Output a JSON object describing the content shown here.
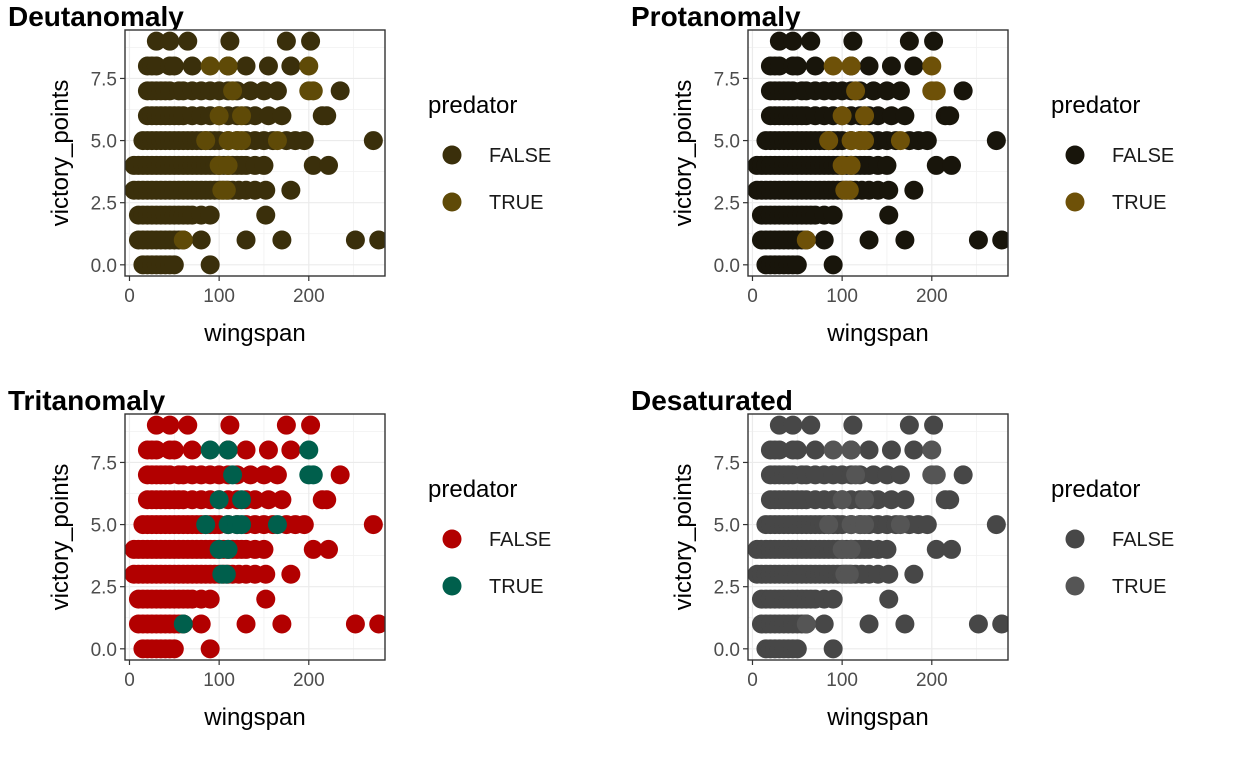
{
  "chart_data": [
    {
      "type": "scatter",
      "title": "Deutanomaly",
      "xlabel": "wingspan",
      "ylabel": "victory_points",
      "xlim": [
        -5,
        285
      ],
      "ylim": [
        -0.45,
        9.45
      ],
      "x_ticks": [
        0,
        100,
        200
      ],
      "x_tick_labels": [
        "0",
        "100",
        "200"
      ],
      "y_ticks": [
        0,
        2.5,
        5,
        7.5
      ],
      "y_tick_labels": [
        "0.0",
        "2.5",
        "5.0",
        "7.5"
      ],
      "grid": true,
      "legend": {
        "title": "predator",
        "position": "right",
        "entries": [
          "FALSE",
          "TRUE"
        ]
      },
      "series": [
        {
          "name": "FALSE",
          "color": "#3a2f0b"
        },
        {
          "name": "TRUE",
          "color": "#5f4a07"
        }
      ]
    },
    {
      "type": "scatter",
      "title": "Protanomaly",
      "xlabel": "wingspan",
      "ylabel": "victory_points",
      "xlim": [
        -5,
        285
      ],
      "ylim": [
        -0.45,
        9.45
      ],
      "x_ticks": [
        0,
        100,
        200
      ],
      "x_tick_labels": [
        "0",
        "100",
        "200"
      ],
      "y_ticks": [
        0,
        2.5,
        5,
        7.5
      ],
      "y_tick_labels": [
        "0.0",
        "2.5",
        "5.0",
        "7.5"
      ],
      "grid": true,
      "legend": {
        "title": "predator",
        "position": "right",
        "entries": [
          "FALSE",
          "TRUE"
        ]
      },
      "series": [
        {
          "name": "FALSE",
          "color": "#18150b"
        },
        {
          "name": "TRUE",
          "color": "#6e5108"
        }
      ]
    },
    {
      "type": "scatter",
      "title": "Tritanomaly",
      "xlabel": "wingspan",
      "ylabel": "victory_points",
      "xlim": [
        -5,
        285
      ],
      "ylim": [
        -0.45,
        9.45
      ],
      "x_ticks": [
        0,
        100,
        200
      ],
      "x_tick_labels": [
        "0",
        "100",
        "200"
      ],
      "y_ticks": [
        0,
        2.5,
        5,
        7.5
      ],
      "y_tick_labels": [
        "0.0",
        "2.5",
        "5.0",
        "7.5"
      ],
      "grid": true,
      "legend": {
        "title": "predator",
        "position": "right",
        "entries": [
          "FALSE",
          "TRUE"
        ]
      },
      "series": [
        {
          "name": "FALSE",
          "color": "#b20000"
        },
        {
          "name": "TRUE",
          "color": "#005f4c"
        }
      ]
    },
    {
      "type": "scatter",
      "title": "Desaturated",
      "xlabel": "wingspan",
      "ylabel": "victory_points",
      "xlim": [
        -5,
        285
      ],
      "ylim": [
        -0.45,
        9.45
      ],
      "x_ticks": [
        0,
        100,
        200
      ],
      "x_tick_labels": [
        "0",
        "100",
        "200"
      ],
      "y_ticks": [
        0,
        2.5,
        5,
        7.5
      ],
      "y_tick_labels": [
        "0.0",
        "2.5",
        "5.0",
        "7.5"
      ],
      "grid": true,
      "legend": {
        "title": "predator",
        "position": "right",
        "entries": [
          "FALSE",
          "TRUE"
        ]
      },
      "series": [
        {
          "name": "FALSE",
          "color": "#474747"
        },
        {
          "name": "TRUE",
          "color": "#555555"
        }
      ]
    }
  ],
  "points": {
    "FALSE": [
      [
        15,
        0
      ],
      [
        20,
        0
      ],
      [
        25,
        0
      ],
      [
        30,
        0
      ],
      [
        35,
        0
      ],
      [
        40,
        0
      ],
      [
        45,
        0
      ],
      [
        50,
        0
      ],
      [
        90,
        0
      ],
      [
        10,
        1
      ],
      [
        15,
        1
      ],
      [
        20,
        1
      ],
      [
        25,
        1
      ],
      [
        30,
        1
      ],
      [
        35,
        1
      ],
      [
        40,
        1
      ],
      [
        45,
        1
      ],
      [
        50,
        1
      ],
      [
        55,
        1
      ],
      [
        60,
        1
      ],
      [
        80,
        1
      ],
      [
        130,
        1
      ],
      [
        170,
        1
      ],
      [
        252,
        1
      ],
      [
        278,
        1
      ],
      [
        10,
        2
      ],
      [
        15,
        2
      ],
      [
        20,
        2
      ],
      [
        25,
        2
      ],
      [
        30,
        2
      ],
      [
        35,
        2
      ],
      [
        40,
        2
      ],
      [
        45,
        2
      ],
      [
        50,
        2
      ],
      [
        55,
        2
      ],
      [
        60,
        2
      ],
      [
        65,
        2
      ],
      [
        70,
        2
      ],
      [
        80,
        2
      ],
      [
        90,
        2
      ],
      [
        152,
        2
      ],
      [
        5,
        3
      ],
      [
        10,
        3
      ],
      [
        15,
        3
      ],
      [
        20,
        3
      ],
      [
        25,
        3
      ],
      [
        30,
        3
      ],
      [
        35,
        3
      ],
      [
        40,
        3
      ],
      [
        45,
        3
      ],
      [
        50,
        3
      ],
      [
        55,
        3
      ],
      [
        60,
        3
      ],
      [
        65,
        3
      ],
      [
        70,
        3
      ],
      [
        75,
        3
      ],
      [
        80,
        3
      ],
      [
        85,
        3
      ],
      [
        90,
        3
      ],
      [
        95,
        3
      ],
      [
        100,
        3
      ],
      [
        105,
        3
      ],
      [
        110,
        3
      ],
      [
        115,
        3
      ],
      [
        122,
        3
      ],
      [
        130,
        3
      ],
      [
        140,
        3
      ],
      [
        152,
        3
      ],
      [
        180,
        3
      ],
      [
        5,
        4
      ],
      [
        10,
        4
      ],
      [
        15,
        4
      ],
      [
        20,
        4
      ],
      [
        25,
        4
      ],
      [
        30,
        4
      ],
      [
        35,
        4
      ],
      [
        40,
        4
      ],
      [
        45,
        4
      ],
      [
        50,
        4
      ],
      [
        55,
        4
      ],
      [
        60,
        4
      ],
      [
        65,
        4
      ],
      [
        70,
        4
      ],
      [
        75,
        4
      ],
      [
        80,
        4
      ],
      [
        85,
        4
      ],
      [
        90,
        4
      ],
      [
        95,
        4
      ],
      [
        100,
        4
      ],
      [
        105,
        4
      ],
      [
        110,
        4
      ],
      [
        115,
        4
      ],
      [
        120,
        4
      ],
      [
        125,
        4
      ],
      [
        130,
        4
      ],
      [
        140,
        4
      ],
      [
        150,
        4
      ],
      [
        205,
        4
      ],
      [
        222,
        4
      ],
      [
        15,
        5
      ],
      [
        20,
        5
      ],
      [
        25,
        5
      ],
      [
        30,
        5
      ],
      [
        35,
        5
      ],
      [
        40,
        5
      ],
      [
        45,
        5
      ],
      [
        50,
        5
      ],
      [
        55,
        5
      ],
      [
        60,
        5
      ],
      [
        65,
        5
      ],
      [
        70,
        5
      ],
      [
        75,
        5
      ],
      [
        80,
        5
      ],
      [
        85,
        5
      ],
      [
        90,
        5
      ],
      [
        95,
        5
      ],
      [
        100,
        5
      ],
      [
        110,
        5
      ],
      [
        120,
        5
      ],
      [
        130,
        5
      ],
      [
        140,
        5
      ],
      [
        150,
        5
      ],
      [
        160,
        5
      ],
      [
        175,
        5
      ],
      [
        185,
        5
      ],
      [
        195,
        5
      ],
      [
        272,
        5
      ],
      [
        20,
        6
      ],
      [
        25,
        6
      ],
      [
        30,
        6
      ],
      [
        35,
        6
      ],
      [
        40,
        6
      ],
      [
        45,
        6
      ],
      [
        50,
        6
      ],
      [
        55,
        6
      ],
      [
        60,
        6
      ],
      [
        70,
        6
      ],
      [
        80,
        6
      ],
      [
        90,
        6
      ],
      [
        100,
        6
      ],
      [
        110,
        6
      ],
      [
        120,
        6
      ],
      [
        130,
        6
      ],
      [
        140,
        6
      ],
      [
        155,
        6
      ],
      [
        170,
        6
      ],
      [
        215,
        6
      ],
      [
        220,
        6
      ],
      [
        20,
        7
      ],
      [
        25,
        7
      ],
      [
        30,
        7
      ],
      [
        35,
        7
      ],
      [
        40,
        7
      ],
      [
        45,
        7
      ],
      [
        55,
        7
      ],
      [
        60,
        7
      ],
      [
        70,
        7
      ],
      [
        80,
        7
      ],
      [
        90,
        7
      ],
      [
        100,
        7
      ],
      [
        110,
        7
      ],
      [
        120,
        7
      ],
      [
        135,
        7
      ],
      [
        150,
        7
      ],
      [
        165,
        7
      ],
      [
        235,
        7
      ],
      [
        20,
        8
      ],
      [
        25,
        8
      ],
      [
        30,
        8
      ],
      [
        45,
        8
      ],
      [
        50,
        8
      ],
      [
        70,
        8
      ],
      [
        110,
        8
      ],
      [
        130,
        8
      ],
      [
        155,
        8
      ],
      [
        180,
        8
      ],
      [
        30,
        9
      ],
      [
        45,
        9
      ],
      [
        65,
        9
      ],
      [
        112,
        9
      ],
      [
        175,
        9
      ],
      [
        202,
        9
      ]
    ],
    "TRUE": [
      [
        60,
        1
      ],
      [
        103,
        3
      ],
      [
        108,
        3
      ],
      [
        100,
        4
      ],
      [
        110,
        4
      ],
      [
        85,
        5
      ],
      [
        110,
        5
      ],
      [
        120,
        5
      ],
      [
        125,
        5
      ],
      [
        165,
        5
      ],
      [
        100,
        6
      ],
      [
        125,
        6
      ],
      [
        115,
        7
      ],
      [
        200,
        7
      ],
      [
        205,
        7
      ],
      [
        90,
        8
      ],
      [
        110,
        8
      ],
      [
        200,
        8
      ]
    ]
  }
}
